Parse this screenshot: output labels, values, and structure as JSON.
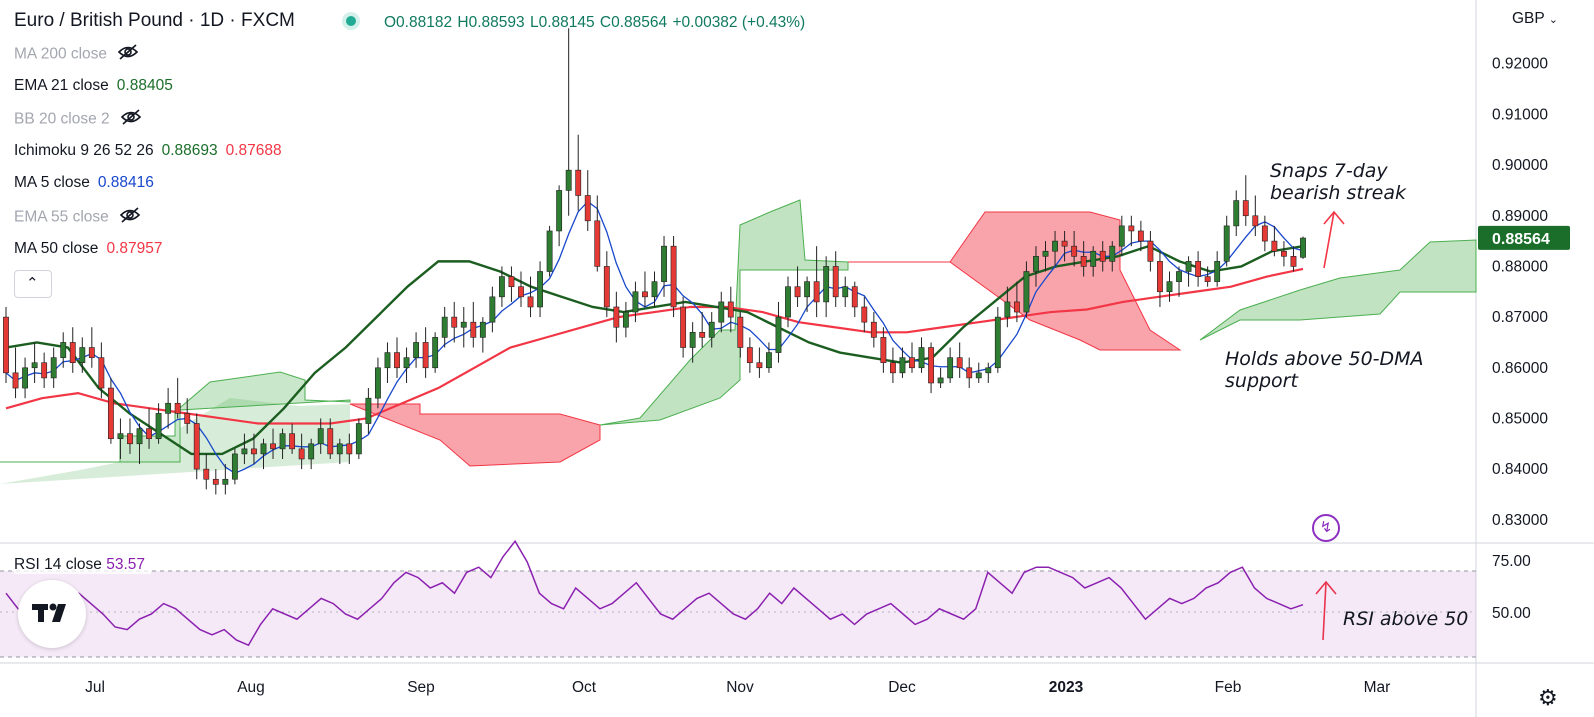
{
  "header": {
    "title": "Euro / British Pound · 1D · FXCM",
    "ohlc": {
      "open": "O0.88182",
      "high": "H0.88593",
      "low": "L0.88145",
      "close": "C0.88564",
      "change": "+0.00382 (+0.43%)"
    },
    "currency": "GBP"
  },
  "indicators": [
    {
      "name": "MA 200 close",
      "hidden": true
    },
    {
      "name": "EMA 21 close",
      "value": "0.88405",
      "color": "#1b6e2a"
    },
    {
      "name": "BB 20 close 2",
      "hidden": true
    },
    {
      "name": "Ichimoku 9 26 52 26",
      "value": "0.88693",
      "value2": "0.87688",
      "color": "#1b6e2a",
      "color2": "#f23645"
    },
    {
      "name": "MA 5 close",
      "value": "0.88416",
      "color": "#1848cc"
    },
    {
      "name": "EMA 55 close",
      "hidden": true
    },
    {
      "name": "MA 50 close",
      "value": "0.87957",
      "color": "#f23645"
    }
  ],
  "rsi": {
    "name": "RSI 14 close",
    "value": "53.57",
    "color": "#8b21b0"
  },
  "annotations": {
    "snaps": [
      "Snaps 7-day",
      "bearish streak"
    ],
    "holds": [
      "Holds above 50-DMA",
      "support"
    ],
    "rsi": "RSI above 50"
  },
  "price_tag": "0.88564",
  "icons": [
    "eye-off-icon",
    "chevron-up-icon",
    "chevron-down-icon",
    "gear-icon",
    "lightning-icon",
    "tradingview-logo"
  ],
  "chart_data": {
    "type": "candlestick",
    "symbol": "EUR/GBP",
    "y_axis": {
      "ticks": [
        "0.92000",
        "0.91000",
        "0.90000",
        "0.89000",
        "0.88000",
        "0.87000",
        "0.86000",
        "0.85000",
        "0.84000",
        "0.83000"
      ],
      "range": [
        0.827,
        0.931
      ]
    },
    "rsi_axis": {
      "ticks": [
        "75.00",
        "50.00"
      ],
      "band": [
        30,
        70
      ]
    },
    "x_labels": [
      "Jul",
      "Aug",
      "Sep",
      "Oct",
      "Nov",
      "Dec",
      "2023",
      "Feb",
      "Mar"
    ],
    "candles": [
      [
        0.87,
        0.872,
        0.857,
        0.859
      ],
      [
        0.859,
        0.864,
        0.854,
        0.856
      ],
      [
        0.856,
        0.862,
        0.854,
        0.86
      ],
      [
        0.86,
        0.865,
        0.857,
        0.861
      ],
      [
        0.861,
        0.863,
        0.856,
        0.858
      ],
      [
        0.858,
        0.864,
        0.856,
        0.862
      ],
      [
        0.862,
        0.867,
        0.86,
        0.865
      ],
      [
        0.865,
        0.868,
        0.859,
        0.861
      ],
      [
        0.861,
        0.866,
        0.859,
        0.864
      ],
      [
        0.864,
        0.868,
        0.86,
        0.862
      ],
      [
        0.862,
        0.865,
        0.854,
        0.856
      ],
      [
        0.856,
        0.858,
        0.845,
        0.846
      ],
      [
        0.846,
        0.85,
        0.842,
        0.847
      ],
      [
        0.847,
        0.85,
        0.843,
        0.845
      ],
      [
        0.845,
        0.849,
        0.841,
        0.848
      ],
      [
        0.848,
        0.852,
        0.844,
        0.846
      ],
      [
        0.846,
        0.853,
        0.845,
        0.851
      ],
      [
        0.851,
        0.856,
        0.848,
        0.853
      ],
      [
        0.853,
        0.858,
        0.85,
        0.851
      ],
      [
        0.851,
        0.854,
        0.847,
        0.849
      ],
      [
        0.849,
        0.851,
        0.838,
        0.84
      ],
      [
        0.84,
        0.843,
        0.836,
        0.838
      ],
      [
        0.838,
        0.84,
        0.835,
        0.837
      ],
      [
        0.837,
        0.841,
        0.835,
        0.838
      ],
      [
        0.838,
        0.844,
        0.837,
        0.843
      ],
      [
        0.843,
        0.847,
        0.841,
        0.844
      ],
      [
        0.844,
        0.847,
        0.841,
        0.843
      ],
      [
        0.843,
        0.846,
        0.84,
        0.845
      ],
      [
        0.845,
        0.848,
        0.842,
        0.844
      ],
      [
        0.844,
        0.848,
        0.842,
        0.847
      ],
      [
        0.847,
        0.849,
        0.843,
        0.844
      ],
      [
        0.844,
        0.847,
        0.84,
        0.842
      ],
      [
        0.842,
        0.846,
        0.84,
        0.845
      ],
      [
        0.845,
        0.85,
        0.843,
        0.848
      ],
      [
        0.848,
        0.85,
        0.842,
        0.843
      ],
      [
        0.843,
        0.846,
        0.841,
        0.845
      ],
      [
        0.845,
        0.847,
        0.841,
        0.843
      ],
      [
        0.843,
        0.85,
        0.842,
        0.849
      ],
      [
        0.849,
        0.856,
        0.847,
        0.854
      ],
      [
        0.854,
        0.862,
        0.852,
        0.86
      ],
      [
        0.86,
        0.865,
        0.857,
        0.863
      ],
      [
        0.863,
        0.866,
        0.858,
        0.86
      ],
      [
        0.86,
        0.864,
        0.857,
        0.862
      ],
      [
        0.862,
        0.867,
        0.86,
        0.865
      ],
      [
        0.865,
        0.868,
        0.858,
        0.86
      ],
      [
        0.86,
        0.867,
        0.859,
        0.866
      ],
      [
        0.866,
        0.872,
        0.864,
        0.87
      ],
      [
        0.87,
        0.873,
        0.865,
        0.868
      ],
      [
        0.868,
        0.872,
        0.864,
        0.869
      ],
      [
        0.869,
        0.873,
        0.864,
        0.866
      ],
      [
        0.866,
        0.87,
        0.863,
        0.869
      ],
      [
        0.869,
        0.876,
        0.867,
        0.874
      ],
      [
        0.874,
        0.88,
        0.872,
        0.878
      ],
      [
        0.878,
        0.88,
        0.873,
        0.876
      ],
      [
        0.876,
        0.879,
        0.872,
        0.874
      ],
      [
        0.874,
        0.878,
        0.87,
        0.872
      ],
      [
        0.872,
        0.881,
        0.87,
        0.879
      ],
      [
        0.879,
        0.888,
        0.878,
        0.887
      ],
      [
        0.887,
        0.896,
        0.884,
        0.895
      ],
      [
        0.895,
        0.927,
        0.89,
        0.899
      ],
      [
        0.899,
        0.906,
        0.891,
        0.894
      ],
      [
        0.894,
        0.899,
        0.887,
        0.889
      ],
      [
        0.889,
        0.894,
        0.879,
        0.88
      ],
      [
        0.88,
        0.883,
        0.87,
        0.872
      ],
      [
        0.872,
        0.875,
        0.865,
        0.868
      ],
      [
        0.868,
        0.873,
        0.866,
        0.871
      ],
      [
        0.871,
        0.877,
        0.869,
        0.875
      ],
      [
        0.875,
        0.879,
        0.872,
        0.874
      ],
      [
        0.874,
        0.879,
        0.872,
        0.877
      ],
      [
        0.877,
        0.886,
        0.874,
        0.884
      ],
      [
        0.884,
        0.886,
        0.87,
        0.872
      ],
      [
        0.872,
        0.874,
        0.862,
        0.864
      ],
      [
        0.864,
        0.869,
        0.861,
        0.867
      ],
      [
        0.867,
        0.871,
        0.864,
        0.866
      ],
      [
        0.866,
        0.871,
        0.864,
        0.869
      ],
      [
        0.869,
        0.875,
        0.867,
        0.873
      ],
      [
        0.873,
        0.876,
        0.867,
        0.87
      ],
      [
        0.87,
        0.871,
        0.862,
        0.864
      ],
      [
        0.864,
        0.866,
        0.859,
        0.861
      ],
      [
        0.861,
        0.864,
        0.858,
        0.86
      ],
      [
        0.86,
        0.865,
        0.859,
        0.863
      ],
      [
        0.863,
        0.873,
        0.861,
        0.87
      ],
      [
        0.87,
        0.878,
        0.868,
        0.876
      ],
      [
        0.876,
        0.88,
        0.872,
        0.874
      ],
      [
        0.874,
        0.878,
        0.871,
        0.877
      ],
      [
        0.877,
        0.884,
        0.87,
        0.873
      ],
      [
        0.873,
        0.882,
        0.87,
        0.88
      ],
      [
        0.88,
        0.883,
        0.872,
        0.874
      ],
      [
        0.874,
        0.878,
        0.872,
        0.876
      ],
      [
        0.876,
        0.877,
        0.87,
        0.872
      ],
      [
        0.872,
        0.874,
        0.867,
        0.869
      ],
      [
        0.869,
        0.871,
        0.864,
        0.866
      ],
      [
        0.866,
        0.868,
        0.859,
        0.861
      ],
      [
        0.861,
        0.864,
        0.857,
        0.859
      ],
      [
        0.859,
        0.864,
        0.858,
        0.862
      ],
      [
        0.862,
        0.865,
        0.859,
        0.86
      ],
      [
        0.86,
        0.866,
        0.859,
        0.864
      ],
      [
        0.864,
        0.865,
        0.855,
        0.857
      ],
      [
        0.857,
        0.86,
        0.856,
        0.858
      ],
      [
        0.858,
        0.864,
        0.857,
        0.862
      ],
      [
        0.862,
        0.865,
        0.858,
        0.86
      ],
      [
        0.86,
        0.862,
        0.856,
        0.858
      ],
      [
        0.858,
        0.861,
        0.857,
        0.859
      ],
      [
        0.859,
        0.861,
        0.857,
        0.86
      ],
      [
        0.86,
        0.872,
        0.859,
        0.87
      ],
      [
        0.87,
        0.876,
        0.868,
        0.873
      ],
      [
        0.873,
        0.877,
        0.869,
        0.871
      ],
      [
        0.871,
        0.881,
        0.87,
        0.879
      ],
      [
        0.879,
        0.884,
        0.876,
        0.882
      ],
      [
        0.882,
        0.885,
        0.879,
        0.883
      ],
      [
        0.883,
        0.887,
        0.88,
        0.885
      ],
      [
        0.885,
        0.887,
        0.881,
        0.884
      ],
      [
        0.884,
        0.887,
        0.88,
        0.882
      ],
      [
        0.882,
        0.885,
        0.878,
        0.88
      ],
      [
        0.88,
        0.884,
        0.878,
        0.883
      ],
      [
        0.883,
        0.885,
        0.879,
        0.881
      ],
      [
        0.881,
        0.885,
        0.879,
        0.884
      ],
      [
        0.884,
        0.89,
        0.882,
        0.888
      ],
      [
        0.888,
        0.89,
        0.884,
        0.887
      ],
      [
        0.887,
        0.889,
        0.883,
        0.885
      ],
      [
        0.885,
        0.887,
        0.879,
        0.881
      ],
      [
        0.881,
        0.883,
        0.872,
        0.875
      ],
      [
        0.875,
        0.879,
        0.873,
        0.877
      ],
      [
        0.877,
        0.88,
        0.874,
        0.879
      ],
      [
        0.879,
        0.882,
        0.876,
        0.881
      ],
      [
        0.881,
        0.883,
        0.876,
        0.878
      ],
      [
        0.878,
        0.88,
        0.876,
        0.877
      ],
      [
        0.877,
        0.883,
        0.876,
        0.881
      ],
      [
        0.881,
        0.89,
        0.88,
        0.888
      ],
      [
        0.888,
        0.895,
        0.886,
        0.893
      ],
      [
        0.893,
        0.898,
        0.888,
        0.89
      ],
      [
        0.89,
        0.894,
        0.886,
        0.888
      ],
      [
        0.888,
        0.89,
        0.883,
        0.885
      ],
      [
        0.885,
        0.888,
        0.882,
        0.883
      ],
      [
        0.883,
        0.885,
        0.88,
        0.882
      ],
      [
        0.882,
        0.884,
        0.879,
        0.88
      ],
      [
        0.8818,
        0.8859,
        0.8815,
        0.8856
      ]
    ],
    "ema21": [
      0.864,
      0.865,
      0.864,
      0.856,
      0.851,
      0.847,
      0.843,
      0.843,
      0.846,
      0.852,
      0.859,
      0.864,
      0.87,
      0.876,
      0.881,
      0.881,
      0.879,
      0.876,
      0.874,
      0.872,
      0.871,
      0.872,
      0.873,
      0.872,
      0.871,
      0.868,
      0.865,
      0.863,
      0.862,
      0.861,
      0.862,
      0.868,
      0.873,
      0.878,
      0.88,
      0.881,
      0.882,
      0.884,
      0.881,
      0.879,
      0.88,
      0.883,
      0.884
    ],
    "sma50": [
      0.852,
      0.854,
      0.855,
      0.853,
      0.852,
      0.851,
      0.85,
      0.849,
      0.849,
      0.849,
      0.85,
      0.853,
      0.856,
      0.86,
      0.864,
      0.866,
      0.868,
      0.87,
      0.871,
      0.872,
      0.872,
      0.871,
      0.869,
      0.868,
      0.867,
      0.867,
      0.868,
      0.869,
      0.87,
      0.871,
      0.8715,
      0.873,
      0.874,
      0.875,
      0.876,
      0.878,
      0.8795
    ],
    "rsi": [
      58,
      52,
      48,
      46,
      52,
      55,
      58,
      54,
      50,
      45,
      44,
      48,
      50,
      54,
      52,
      48,
      44,
      42,
      44,
      40,
      38,
      46,
      52,
      50,
      48,
      52,
      56,
      54,
      50,
      48,
      52,
      56,
      62,
      66,
      64,
      60,
      62,
      58,
      66,
      68,
      64,
      72,
      78,
      70,
      58,
      54,
      52,
      60,
      56,
      52,
      54,
      58,
      62,
      56,
      50,
      48,
      52,
      56,
      58,
      54,
      50,
      48,
      52,
      58,
      54,
      60,
      56,
      52,
      48,
      50,
      46,
      50,
      52,
      54,
      50,
      46,
      48,
      52,
      50,
      48,
      52,
      66,
      62,
      58,
      66,
      68,
      68,
      66,
      64,
      60,
      62,
      64,
      60,
      54,
      48,
      52,
      56,
      54,
      56,
      60,
      62,
      66,
      68,
      60,
      56,
      54,
      52,
      53.57
    ]
  }
}
